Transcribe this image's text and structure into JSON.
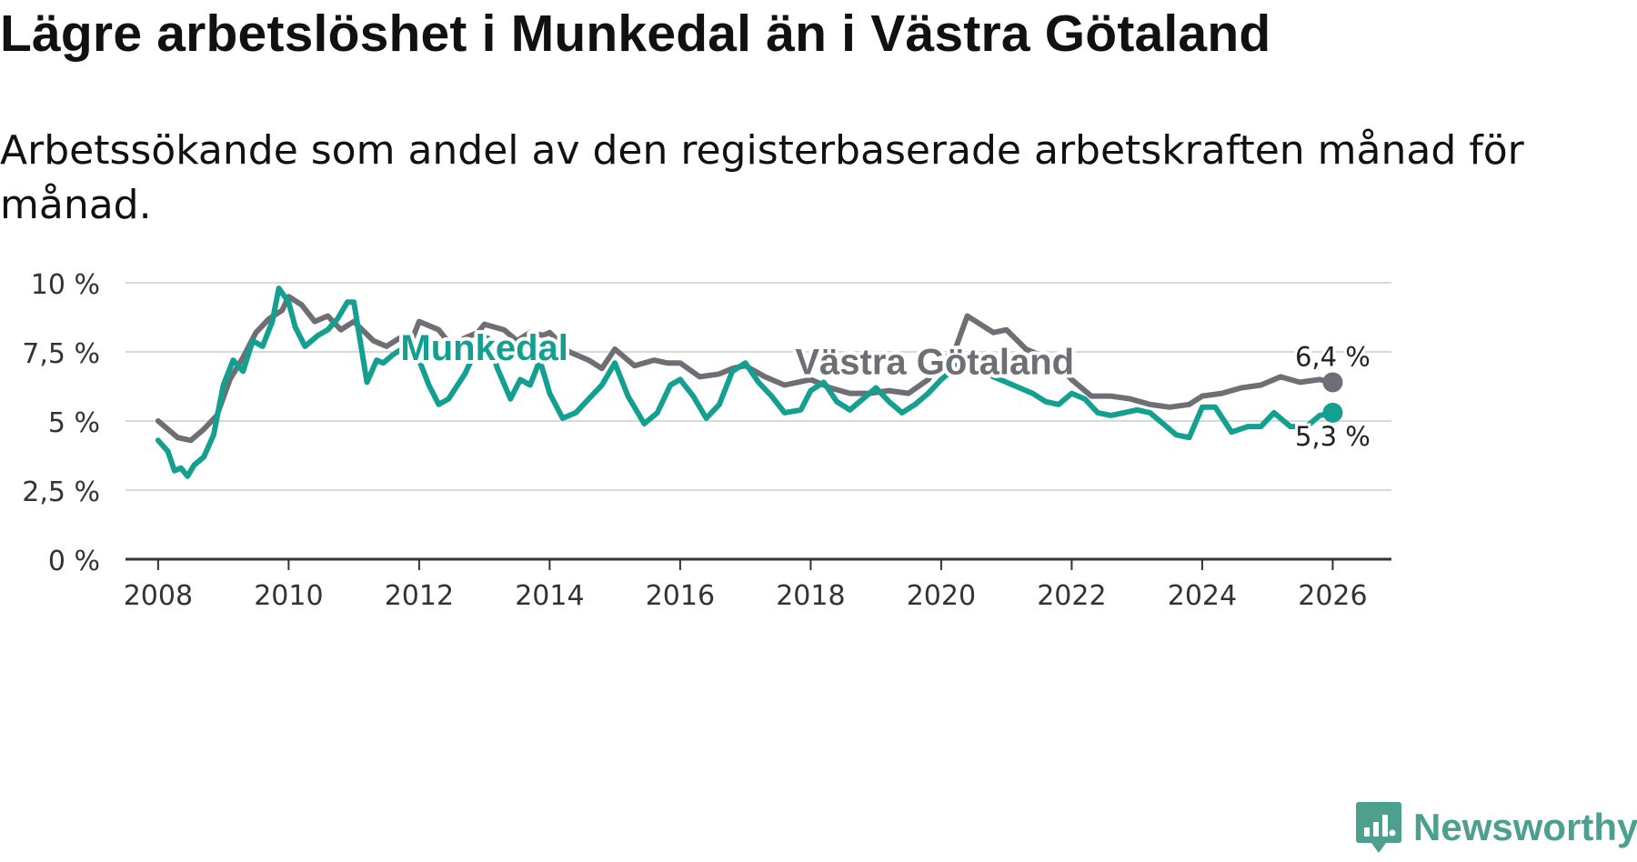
{
  "header": {
    "title": "Lägre arbetslöshet i Munkedal än i Västra Götaland",
    "subtitle": "Arbetssökande som andel av den registerbaserade arbetskraften månad för månad."
  },
  "brand": {
    "name": "Newsworthy",
    "icon": "newsworthy-logo-icon",
    "color": "#4d9f8e"
  },
  "chart_data": {
    "type": "line",
    "title": "Lägre arbetslöshet i Munkedal än i Västra Götaland",
    "subtitle": "Arbetssökande som andel av den registerbaserade arbetskraften månad för månad.",
    "xlabel": "",
    "ylabel": "",
    "xlim": [
      2007.5,
      2026.9
    ],
    "ylim": [
      0,
      10
    ],
    "grid": true,
    "x_ticks": [
      2008,
      2010,
      2012,
      2014,
      2016,
      2018,
      2020,
      2022,
      2024,
      2026
    ],
    "x_tick_labels": [
      "2008",
      "2010",
      "2012",
      "2014",
      "2016",
      "2018",
      "2020",
      "2022",
      "2024",
      "2026"
    ],
    "y_ticks": [
      0,
      2.5,
      5,
      7.5,
      10
    ],
    "y_tick_labels": [
      "0 %",
      "2,5 %",
      "5 %",
      "7,5 %",
      "10 %"
    ],
    "series": [
      {
        "name": "Västra Götaland",
        "color": "#6e6e74",
        "end_label": "6,4 %",
        "x": [
          2008.0,
          2008.3,
          2008.5,
          2008.7,
          2008.9,
          2009.1,
          2009.3,
          2009.5,
          2009.7,
          2009.9,
          2010.0,
          2010.2,
          2010.4,
          2010.6,
          2010.8,
          2011.0,
          2011.3,
          2011.5,
          2011.7,
          2011.9,
          2012.0,
          2012.3,
          2012.5,
          2012.7,
          2012.9,
          2013.0,
          2013.3,
          2013.5,
          2013.7,
          2013.9,
          2014.0,
          2014.3,
          2014.6,
          2014.8,
          2015.0,
          2015.3,
          2015.6,
          2015.8,
          2016.0,
          2016.3,
          2016.6,
          2016.8,
          2017.0,
          2017.3,
          2017.6,
          2017.8,
          2018.0,
          2018.3,
          2018.6,
          2018.9,
          2019.2,
          2019.5,
          2019.8,
          2020.0,
          2020.2,
          2020.4,
          2020.6,
          2020.8,
          2021.0,
          2021.3,
          2021.6,
          2021.8,
          2022.0,
          2022.3,
          2022.6,
          2022.9,
          2023.2,
          2023.5,
          2023.8,
          2024.0,
          2024.3,
          2024.6,
          2024.9,
          2025.2,
          2025.5,
          2025.8,
          2026.0
        ],
        "values": [
          5.0,
          4.4,
          4.3,
          4.7,
          5.2,
          6.5,
          7.3,
          8.2,
          8.7,
          9.0,
          9.5,
          9.2,
          8.6,
          8.8,
          8.3,
          8.6,
          7.9,
          7.7,
          8.0,
          8.0,
          8.6,
          8.3,
          7.7,
          8.0,
          8.2,
          8.5,
          8.3,
          7.9,
          8.2,
          8.1,
          8.2,
          7.5,
          7.2,
          6.9,
          7.6,
          7.0,
          7.2,
          7.1,
          7.1,
          6.6,
          6.7,
          6.9,
          7.0,
          6.6,
          6.3,
          6.4,
          6.5,
          6.2,
          6.0,
          6.0,
          6.1,
          6.0,
          6.5,
          7.2,
          7.5,
          8.8,
          8.5,
          8.2,
          8.3,
          7.6,
          7.3,
          7.0,
          6.5,
          5.9,
          5.9,
          5.8,
          5.6,
          5.5,
          5.6,
          5.9,
          6.0,
          6.2,
          6.3,
          6.6,
          6.4,
          6.5,
          6.4
        ]
      },
      {
        "name": "Munkedal",
        "color": "#14a091",
        "end_label": "5,3 %",
        "x": [
          2008.0,
          2008.15,
          2008.25,
          2008.35,
          2008.45,
          2008.55,
          2008.7,
          2008.85,
          2009.0,
          2009.15,
          2009.3,
          2009.45,
          2009.6,
          2009.75,
          2009.85,
          2010.0,
          2010.1,
          2010.25,
          2010.45,
          2010.6,
          2010.75,
          2010.9,
          2011.0,
          2011.2,
          2011.35,
          2011.45,
          2011.6,
          2011.8,
          2012.0,
          2012.15,
          2012.3,
          2012.45,
          2012.7,
          2012.9,
          2013.05,
          2013.2,
          2013.4,
          2013.55,
          2013.7,
          2013.85,
          2014.0,
          2014.2,
          2014.4,
          2014.6,
          2014.8,
          2015.0,
          2015.2,
          2015.45,
          2015.65,
          2015.85,
          2016.0,
          2016.2,
          2016.4,
          2016.6,
          2016.8,
          2017.0,
          2017.2,
          2017.4,
          2017.6,
          2017.85,
          2018.0,
          2018.2,
          2018.4,
          2018.6,
          2018.8,
          2019.0,
          2019.2,
          2019.4,
          2019.6,
          2019.8,
          2020.0,
          2020.2,
          2020.4,
          2020.6,
          2020.8,
          2021.0,
          2021.2,
          2021.4,
          2021.6,
          2021.8,
          2022.0,
          2022.2,
          2022.4,
          2022.6,
          2022.8,
          2023.0,
          2023.2,
          2023.4,
          2023.6,
          2023.8,
          2024.0,
          2024.2,
          2024.45,
          2024.7,
          2024.9,
          2025.1,
          2025.35,
          2025.6,
          2025.8,
          2026.0
        ],
        "values": [
          4.3,
          3.9,
          3.2,
          3.3,
          3.0,
          3.4,
          3.7,
          4.5,
          6.3,
          7.2,
          6.8,
          7.9,
          7.7,
          8.6,
          9.8,
          9.3,
          8.4,
          7.7,
          8.1,
          8.3,
          8.7,
          9.3,
          9.3,
          6.4,
          7.2,
          7.1,
          7.4,
          7.7,
          7.2,
          6.3,
          5.6,
          5.8,
          6.7,
          7.7,
          8.0,
          6.9,
          5.8,
          6.5,
          6.3,
          7.2,
          6.0,
          5.1,
          5.3,
          5.8,
          6.3,
          7.1,
          5.9,
          4.9,
          5.3,
          6.3,
          6.5,
          5.9,
          5.1,
          5.6,
          6.8,
          7.1,
          6.4,
          5.9,
          5.3,
          5.4,
          6.1,
          6.4,
          5.7,
          5.4,
          5.8,
          6.2,
          5.7,
          5.3,
          5.6,
          6.0,
          6.5,
          6.9,
          7.4,
          6.9,
          6.6,
          6.4,
          6.2,
          6.0,
          5.7,
          5.6,
          6.0,
          5.8,
          5.3,
          5.2,
          5.3,
          5.4,
          5.3,
          4.9,
          4.5,
          4.4,
          5.5,
          5.5,
          4.6,
          4.8,
          4.8,
          5.3,
          4.8,
          4.8,
          5.2,
          5.3
        ]
      }
    ],
    "annotations": [
      {
        "text": "Munkedal",
        "series": "Munkedal",
        "x": 2013.0,
        "y": 7.2
      },
      {
        "text": "Västra Götaland",
        "series": "Västra Götaland",
        "x": 2019.9,
        "y": 6.7
      }
    ]
  }
}
